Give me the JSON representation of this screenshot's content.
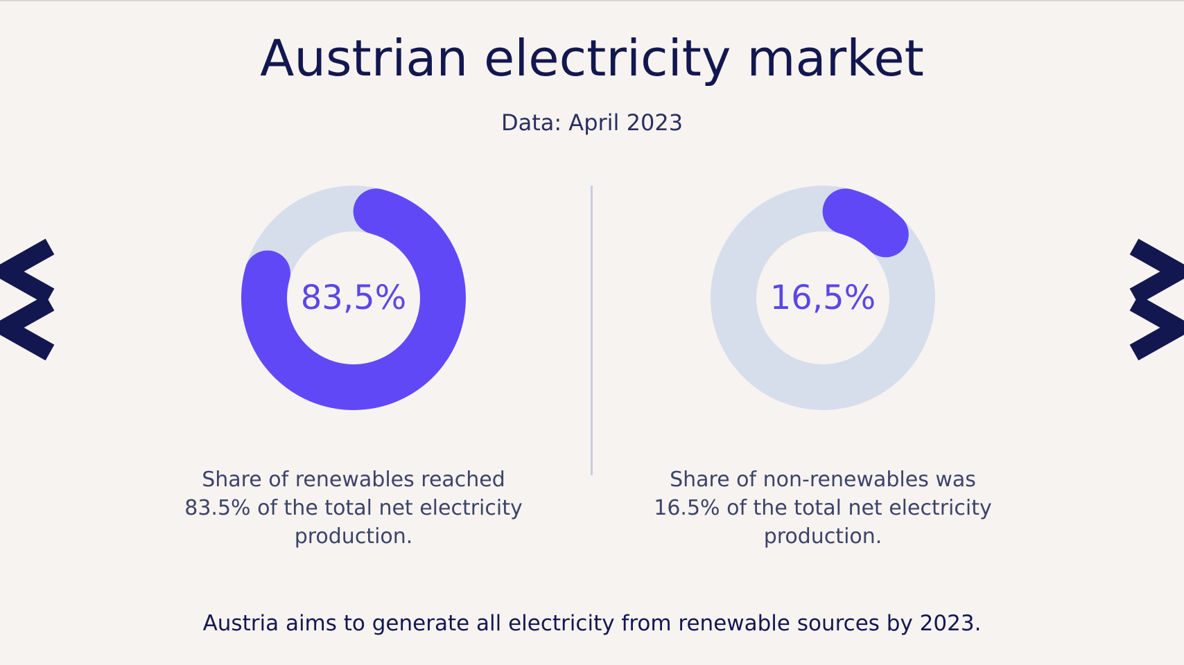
{
  "title": "Austrian electricity market",
  "subtitle": "Data: April 2023",
  "colors": {
    "background": "#f7f3f1",
    "accent": "#6148f7",
    "track": "#d6deeb",
    "navy": "#13174f",
    "caption": "#3c4367"
  },
  "chart_data": [
    {
      "type": "pie",
      "variant": "donut",
      "value": 83.5,
      "label": "83,5%",
      "caption": "Share of renewables reached 83.5% of the total net electricity production."
    },
    {
      "type": "pie",
      "variant": "donut",
      "value": 16.5,
      "label": "16,5%",
      "caption": "Share of non-renewables was 16.5% of the total net electricity production."
    }
  ],
  "footnote": "Austria aims to generate all electricity from renewable sources by 2023.",
  "decorations": {
    "left_icon": "double-chevron-left-icon",
    "right_icon": "double-chevron-right-icon"
  }
}
